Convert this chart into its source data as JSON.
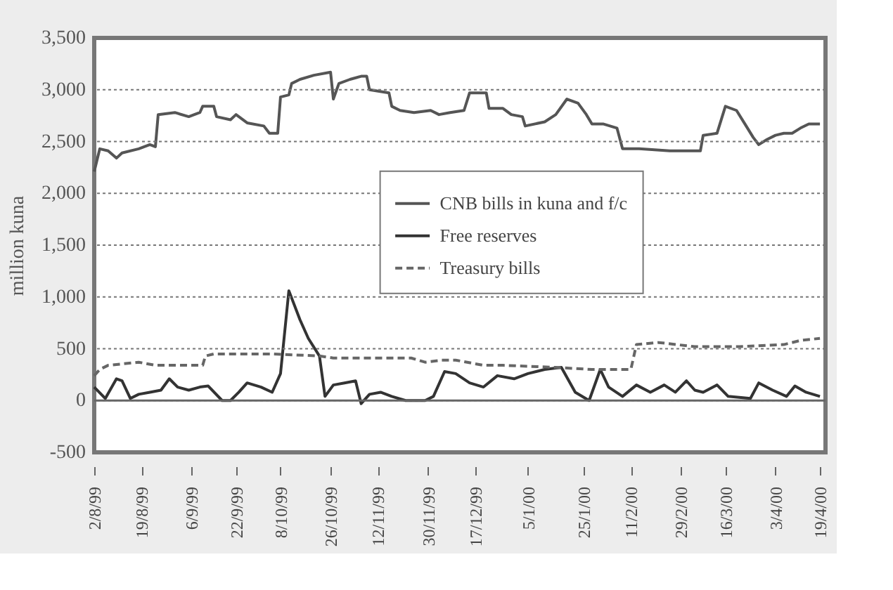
{
  "chart_data": {
    "type": "line",
    "ylabel": "million kuna",
    "xlim": [
      "1999-08-02",
      "2000-04-21"
    ],
    "xticks": [
      {
        "value": "1999-08-02",
        "label": "2/8/99"
      },
      {
        "value": "1999-08-19",
        "label": "19/8/99"
      },
      {
        "value": "1999-09-06",
        "label": "6/9/99"
      },
      {
        "value": "1999-09-22",
        "label": "22/9/99"
      },
      {
        "value": "1999-10-08",
        "label": "8/10/99"
      },
      {
        "value": "1999-10-26",
        "label": "26/10/99"
      },
      {
        "value": "1999-11-12",
        "label": "12/11/99"
      },
      {
        "value": "1999-11-30",
        "label": "30/11/99"
      },
      {
        "value": "1999-12-17",
        "label": "17/12/99"
      },
      {
        "value": "2000-01-05",
        "label": "5/1/00"
      },
      {
        "value": "2000-01-25",
        "label": "25/1/00"
      },
      {
        "value": "2000-02-11",
        "label": "11/2/00"
      },
      {
        "value": "2000-02-29",
        "label": "29/2/00"
      },
      {
        "value": "2000-03-16",
        "label": "16/3/00"
      },
      {
        "value": "2000-04-03",
        "label": "3/4/00"
      },
      {
        "value": "2000-04-19",
        "label": "19/4/00"
      }
    ],
    "ylim": [
      -500,
      3500
    ],
    "yticks": [
      {
        "value": -500,
        "label": "-500"
      },
      0,
      500,
      {
        "value": 1000,
        "label": "1,000"
      },
      {
        "value": 1500,
        "label": "1,500"
      },
      {
        "value": 2000,
        "label": "2,000"
      },
      {
        "value": 2500,
        "label": "2,500"
      },
      {
        "value": 3000,
        "label": "3,000"
      },
      {
        "value": 3500,
        "label": "3,500"
      }
    ],
    "grid": "y",
    "legend": "center",
    "ref_lines": [
      {
        "axis": "y",
        "value": 0,
        "color": "#666666"
      }
    ],
    "series": [
      {
        "name": "CNB bills in kuna and f/c",
        "color": "#555555",
        "line_style": "solid",
        "x": [
          "1999-08-02",
          "1999-08-04",
          "1999-08-07",
          "1999-08-10",
          "1999-08-12",
          "1999-08-18",
          "1999-08-22",
          "1999-08-24",
          "1999-08-25",
          "1999-08-31",
          "1999-09-05",
          "1999-09-09",
          "1999-09-10",
          "1999-09-14",
          "1999-09-15",
          "1999-09-20",
          "1999-09-22",
          "1999-09-26",
          "1999-10-02",
          "1999-10-04",
          "1999-10-07",
          "1999-10-08",
          "1999-10-11",
          "1999-10-12",
          "1999-10-15",
          "1999-10-20",
          "1999-10-26",
          "1999-10-27",
          "1999-10-29",
          "1999-11-02",
          "1999-11-06",
          "1999-11-08",
          "1999-11-09",
          "1999-11-16",
          "1999-11-17",
          "1999-11-20",
          "1999-11-25",
          "1999-12-01",
          "1999-12-04",
          "1999-12-08",
          "1999-12-13",
          "1999-12-15",
          "1999-12-21",
          "1999-12-22",
          "1999-12-27",
          "1999-12-30",
          "2000-01-03",
          "2000-01-04",
          "2000-01-11",
          "2000-01-15",
          "2000-01-19",
          "2000-01-23",
          "2000-01-26",
          "2000-01-28",
          "2000-02-01",
          "2000-02-06",
          "2000-02-08",
          "2000-02-14",
          "2000-02-25",
          "2000-03-07",
          "2000-03-08",
          "2000-03-13",
          "2000-03-16",
          "2000-03-20",
          "2000-03-23",
          "2000-03-26",
          "2000-03-28",
          "2000-03-31",
          "2000-04-03",
          "2000-04-06",
          "2000-04-09",
          "2000-04-12",
          "2000-04-15",
          "2000-04-19"
        ],
        "values": [
          2210,
          2430,
          2410,
          2340,
          2390,
          2430,
          2470,
          2450,
          2760,
          2780,
          2740,
          2780,
          2840,
          2840,
          2740,
          2710,
          2760,
          2680,
          2650,
          2580,
          2580,
          2930,
          2950,
          3060,
          3100,
          3140,
          3170,
          2910,
          3060,
          3100,
          3130,
          3130,
          3000,
          2970,
          2840,
          2800,
          2780,
          2800,
          2760,
          2780,
          2800,
          2970,
          2970,
          2820,
          2820,
          2760,
          2740,
          2650,
          2690,
          2760,
          2910,
          2870,
          2760,
          2670,
          2670,
          2630,
          2430,
          2430,
          2410,
          2410,
          2560,
          2580,
          2840,
          2800,
          2670,
          2540,
          2470,
          2520,
          2560,
          2580,
          2580,
          2630,
          2670,
          2670
        ]
      },
      {
        "name": "Free reserves",
        "color": "#333333",
        "line_style": "solid",
        "x": [
          "1999-08-02",
          "1999-08-06",
          "1999-08-10",
          "1999-08-12",
          "1999-08-15",
          "1999-08-18",
          "1999-08-22",
          "1999-08-26",
          "1999-08-29",
          "1999-09-01",
          "1999-09-05",
          "1999-09-09",
          "1999-09-12",
          "1999-09-17",
          "1999-09-20",
          "1999-09-23",
          "1999-09-26",
          "1999-10-01",
          "1999-10-05",
          "1999-10-08",
          "1999-10-11",
          "1999-10-15",
          "1999-10-18",
          "1999-10-22",
          "1999-10-24",
          "1999-10-27",
          "1999-10-31",
          "1999-11-04",
          "1999-11-06",
          "1999-11-09",
          "1999-11-13",
          "1999-11-17",
          "1999-11-22",
          "1999-11-29",
          "1999-12-02",
          "1999-12-06",
          "1999-12-10",
          "1999-12-15",
          "1999-12-20",
          "1999-12-25",
          "1999-12-31",
          "2000-01-05",
          "2000-01-11",
          "2000-01-17",
          "2000-01-22",
          "2000-01-27",
          "2000-01-31",
          "2000-02-03",
          "2000-02-08",
          "2000-02-13",
          "2000-02-18",
          "2000-02-23",
          "2000-02-27",
          "2000-03-02",
          "2000-03-05",
          "2000-03-08",
          "2000-03-13",
          "2000-03-17",
          "2000-03-25",
          "2000-03-28",
          "2000-04-02",
          "2000-04-07",
          "2000-04-10",
          "2000-04-14",
          "2000-04-19"
        ],
        "values": [
          130,
          20,
          210,
          190,
          20,
          60,
          80,
          100,
          210,
          130,
          100,
          130,
          140,
          0,
          0,
          80,
          170,
          130,
          80,
          260,
          1060,
          780,
          600,
          430,
          40,
          150,
          170,
          190,
          -30,
          60,
          80,
          40,
          0,
          0,
          40,
          280,
          260,
          170,
          130,
          240,
          210,
          260,
          300,
          320,
          80,
          0,
          300,
          130,
          40,
          150,
          80,
          150,
          80,
          190,
          100,
          80,
          150,
          40,
          20,
          170,
          100,
          40,
          140,
          80,
          40
        ]
      },
      {
        "name": "Treasury bills",
        "color": "#666666",
        "line_style": "dashed",
        "x": [
          "1999-08-02",
          "1999-08-04",
          "1999-08-07",
          "1999-08-18",
          "1999-08-24",
          "1999-09-10",
          "1999-09-11",
          "1999-09-14",
          "1999-10-05",
          "1999-10-22",
          "1999-10-27",
          "1999-11-07",
          "1999-11-24",
          "1999-11-29",
          "1999-12-05",
          "1999-12-10",
          "1999-12-20",
          "1999-12-27",
          "2000-01-15",
          "2000-01-28",
          "2000-02-11",
          "2000-02-13",
          "2000-02-21",
          "2000-03-05",
          "2000-03-21",
          "2000-04-06",
          "2000-04-12",
          "2000-04-19"
        ],
        "values": [
          240,
          300,
          340,
          370,
          340,
          340,
          430,
          450,
          450,
          430,
          410,
          410,
          410,
          370,
          390,
          390,
          340,
          340,
          320,
          300,
          300,
          540,
          560,
          520,
          520,
          540,
          580,
          600
        ]
      }
    ]
  }
}
